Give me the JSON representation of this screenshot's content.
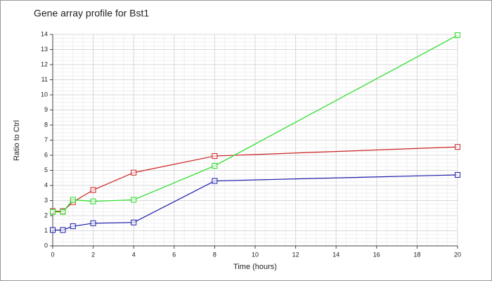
{
  "chart_data": {
    "type": "line",
    "title": "Gene array profile for Bst1",
    "x_label": "Time (hours)",
    "y_label": "Ratio to Ctrl",
    "x": [
      0,
      0.5,
      1,
      2,
      4,
      8,
      20
    ],
    "series": [
      {
        "color": "#cc2222",
        "values": [
          2.3,
          2.3,
          2.9,
          3.7,
          4.85,
          5.95,
          6.55
        ]
      },
      {
        "color": "#22dd22",
        "values": [
          2.25,
          2.25,
          3.05,
          2.95,
          3.05,
          5.3,
          13.95
        ]
      },
      {
        "color": "#1a1aaa",
        "values": [
          1.05,
          1.05,
          1.3,
          1.5,
          1.55,
          4.3,
          4.7
        ]
      }
    ],
    "xlim": [
      0,
      20
    ],
    "xticks": [
      0,
      2,
      4,
      6,
      8,
      10,
      12,
      14,
      16,
      18,
      20
    ],
    "ylim": [
      0,
      14
    ],
    "yticks": [
      0,
      1,
      2,
      3,
      4,
      5,
      6,
      7,
      8,
      9,
      10,
      11,
      12,
      13,
      14
    ],
    "grid": true
  }
}
